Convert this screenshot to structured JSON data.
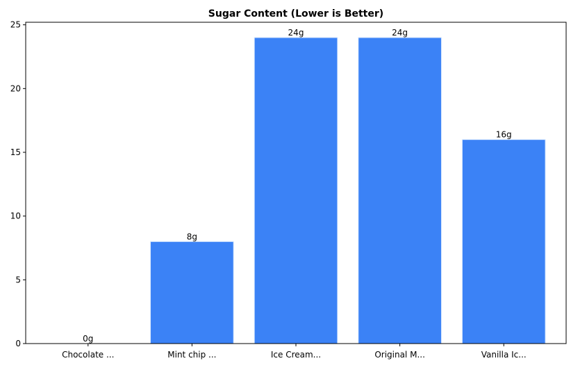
{
  "chart_data": {
    "type": "bar",
    "title": "Sugar Content (Lower is Better)",
    "xlabel": "",
    "ylabel": "",
    "categories": [
      "Chocolate ...",
      "Mint chip ...",
      "Ice Cream...",
      "Original M...",
      "Vanilla Ic..."
    ],
    "values": [
      0,
      8,
      24,
      24,
      16
    ],
    "value_labels": [
      "0g",
      "8g",
      "24g",
      "24g",
      "16g"
    ],
    "ylim": [
      0,
      25.2
    ],
    "yticks": [
      0,
      5,
      10,
      15,
      20,
      25
    ],
    "ytick_labels": [
      "0",
      "5",
      "10",
      "15",
      "20",
      "25"
    ],
    "grid": false,
    "legend": "none",
    "bar_color": "#3b82f6",
    "bar_edge_color": "#dbeafe"
  }
}
